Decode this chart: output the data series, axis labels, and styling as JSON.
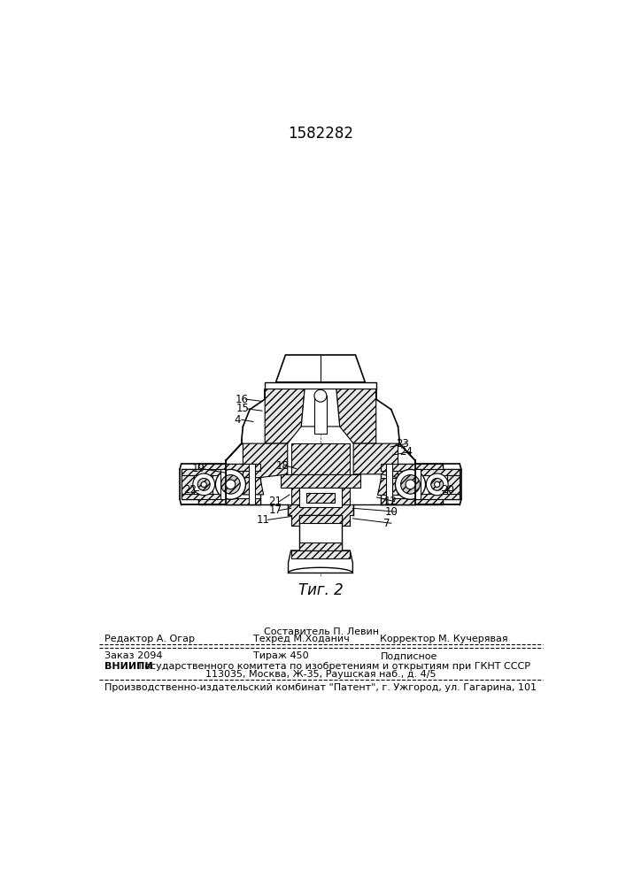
{
  "title_number": "1582282",
  "fig_label": "Τиг. 2",
  "bg_color": "#ffffff",
  "footer_line1_left": "Составитель П. Левин",
  "footer_line2_left": "Редактор А. Огар",
  "footer_line2_mid": "Техред М.Ходанич",
  "footer_line2_right": "Корректор М. Кучерявая",
  "footer_line3_left": "Заказ 2094",
  "footer_line3_mid": "Тираж 450",
  "footer_line3_right": "Подписное",
  "footer_line4_bold": "ВНИИПИ",
  "footer_line4_rest": " Государственного комитета по изобретениям и открытиям при ГКНТ СССР",
  "footer_line5": "113035, Москва, Ж-35, Раушская наб., д. 4/5",
  "footer_line6": "Производственно-издательский комбинат \"Патент\", г. Ужгород, ул. Гагарина, 101"
}
